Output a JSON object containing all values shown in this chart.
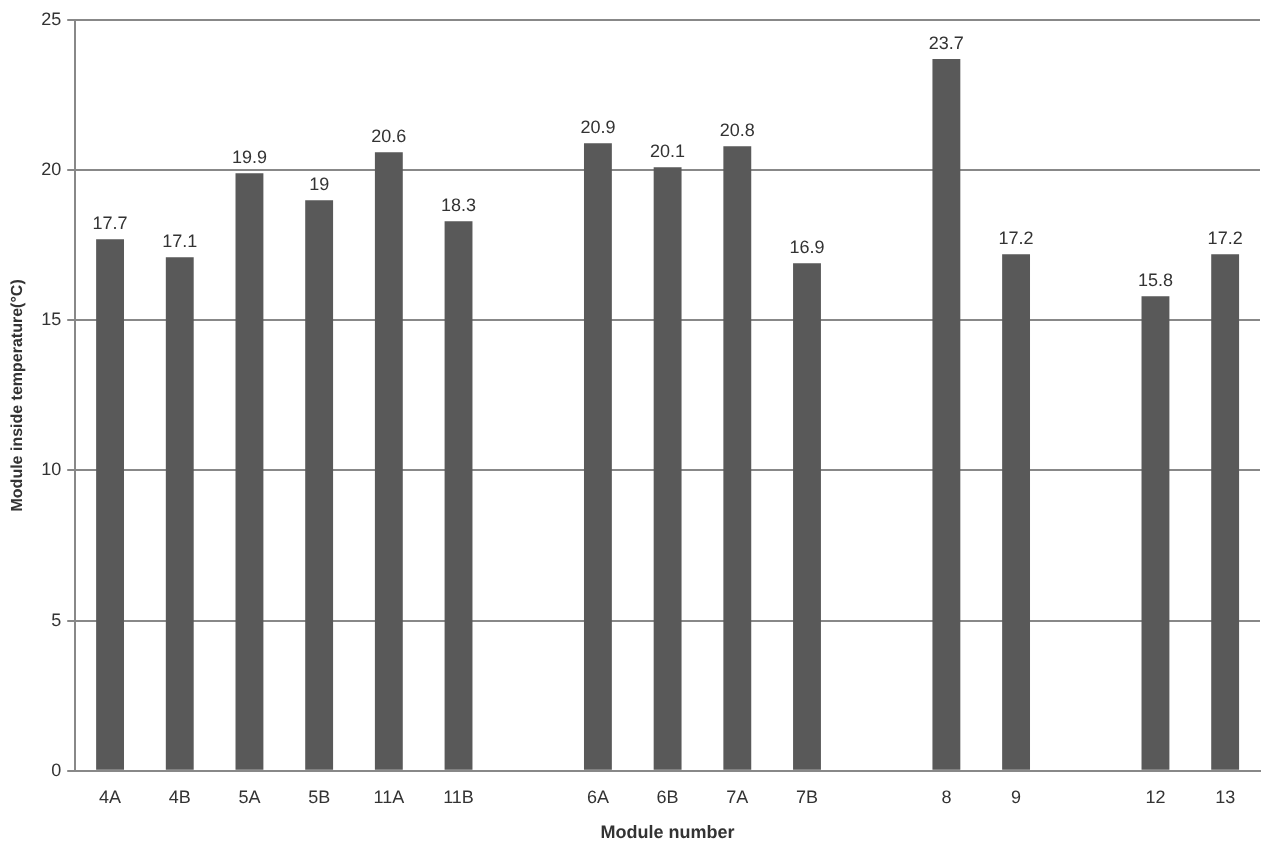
{
  "chart_data": {
    "type": "bar",
    "xlabel": "Module number",
    "ylabel": "Module inside temperature(°C)",
    "categories": [
      "4A",
      "4B",
      "5A",
      "5B",
      "11A",
      "11B",
      null,
      "6A",
      "6B",
      "7A",
      "7B",
      null,
      "8",
      "9",
      null,
      "12",
      "13"
    ],
    "values": [
      17.7,
      17.1,
      19.9,
      19,
      20.6,
      18.3,
      null,
      20.9,
      20.1,
      20.8,
      16.9,
      null,
      23.7,
      17.2,
      null,
      15.8,
      17.2
    ],
    "color": "#595959",
    "ylim": [
      0,
      25
    ],
    "yticks": [
      0,
      5,
      10,
      15,
      20,
      25
    ],
    "grid": "y",
    "data_labels": true,
    "legend": false
  }
}
